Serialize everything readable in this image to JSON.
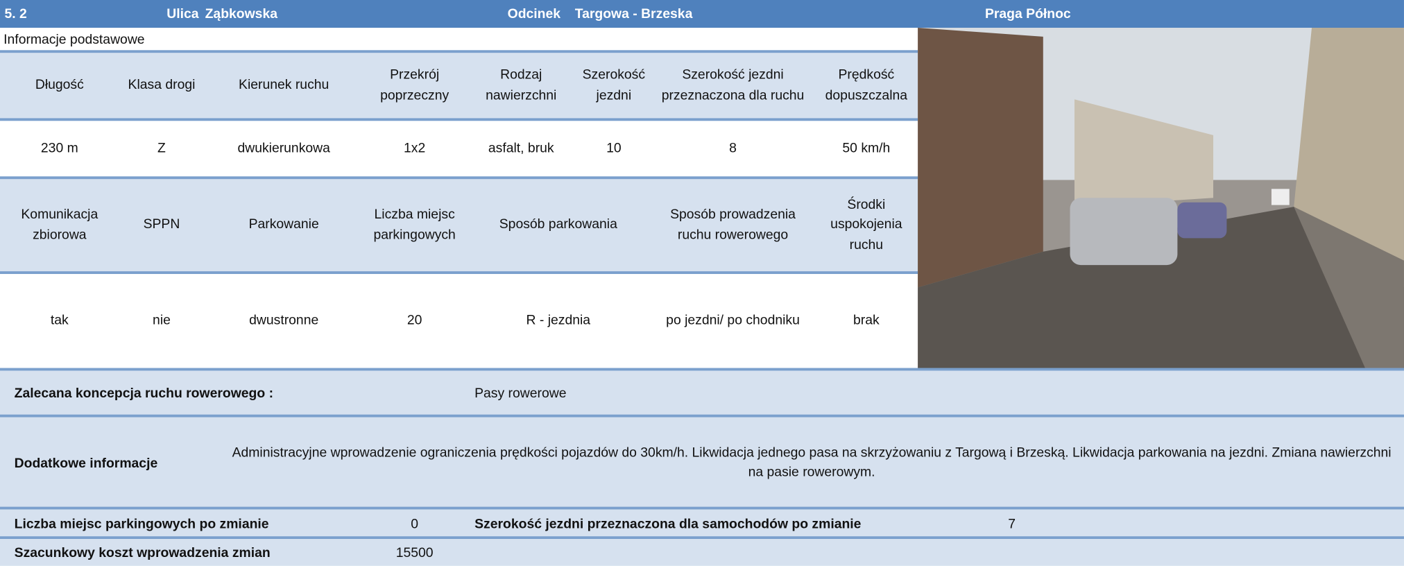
{
  "header": {
    "number": "5. 2",
    "street_label": "Ulica",
    "street": "Ząbkowska",
    "section_label": "Odcinek",
    "section": "Targowa - Brzeska",
    "district": "Praga Północ"
  },
  "section_title": "Informacje podstawowe",
  "table1": {
    "headers": [
      "Długość",
      "Klasa drogi",
      "Kierunek ruchu",
      "Przekrój poprzeczny",
      "Rodzaj nawierzchni",
      "Szerokość jezdni",
      "Szerokość jezdni przeznaczona dla ruchu",
      "Prędkość dopuszczalna"
    ],
    "values": [
      "230 m",
      "Z",
      "dwukierunkowa",
      "1x2",
      "asfalt, bruk",
      10,
      8,
      "50 km/h"
    ]
  },
  "table2": {
    "headers": [
      "Komunikacja zbiorowa",
      "SPPN",
      "Parkowanie",
      "Liczba miejsc parkingowych",
      "Sposób parkowania",
      "Sposób prowadzenia ruchu rowerowego",
      "Środki uspokojenia ruchu"
    ],
    "values": [
      "tak",
      "nie",
      "dwustronne",
      20,
      "R - jezdnia",
      "po jezdni/ po chodniku",
      "brak"
    ]
  },
  "recommendation": {
    "label": "Zalecana koncepcja ruchu rowerowego :",
    "value": "Pasy rowerowe"
  },
  "additional": {
    "label": "Dodatkowe informacje",
    "text": "Administracyjne wprowadzenie ograniczenia prędkości pojazdów do 30km/h. Likwidacja jednego pasa na skrzyżowaniu z Targową i Brzeską. Likwidacja parkowania na jezdni. Zmiana nawierzchni na pasie rowerowym."
  },
  "parking_after": {
    "label": "Liczba miejsc parkingowych po zmianie",
    "value": 0
  },
  "width_after": {
    "label": "Szerokość jezdni przeznaczona dla samochodów po zmianie",
    "value": 7
  },
  "cost": {
    "label": "Szacunkowy koszt wprowadzenia zmian",
    "value": 15500
  }
}
